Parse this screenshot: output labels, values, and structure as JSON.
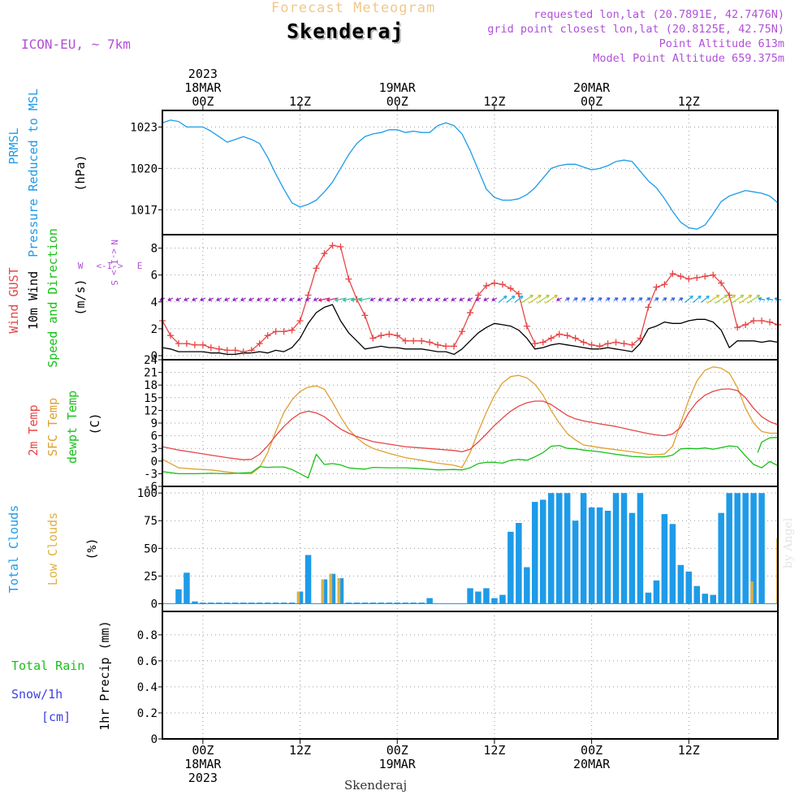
{
  "header": {
    "title": "Forecast Meteogram",
    "location": "Skenderaj",
    "model": "ICON-EU, ~ 7km",
    "requested": "requested lon,lat (20.7891E, 42.7476N)",
    "gridpoint": "grid point closest lon,lat (20.8125E, 42.75N)",
    "point_altitude": "Point Altitude 613m",
    "model_altitude": "Model Point Altitude 659.375m",
    "credit": "by Angel",
    "footer": "Skenderaj"
  },
  "colors": {
    "pressure": "#1e9be8",
    "gust": "#e84545",
    "wind": "#000000",
    "temp2m": "#e84545",
    "sfc": "#e0a030",
    "dewpt": "#18c018",
    "total_clouds": "#1e9be8",
    "low_clouds": "#e0b040",
    "rain": "#18c018",
    "snow": "#4040e0",
    "title": "#f0c88a",
    "meta": "#b050d8"
  },
  "time_axis": {
    "top_labels": [
      {
        "lines": [
          "2023",
          "18MAR",
          "00Z"
        ],
        "hour": 0
      },
      {
        "lines": [
          "12Z"
        ],
        "hour": 12
      },
      {
        "lines": [
          "19MAR",
          "00Z"
        ],
        "hour": 24
      },
      {
        "lines": [
          "12Z"
        ],
        "hour": 36
      },
      {
        "lines": [
          "20MAR",
          "00Z"
        ],
        "hour": 48
      },
      {
        "lines": [
          "12Z"
        ],
        "hour": 60
      }
    ],
    "bottom_labels": [
      {
        "lines": [
          "00Z",
          "18MAR",
          "2023"
        ],
        "hour": 0
      },
      {
        "lines": [
          "12Z"
        ],
        "hour": 12
      },
      {
        "lines": [
          "00Z",
          "19MAR"
        ],
        "hour": 24
      },
      {
        "lines": [
          "12Z"
        ],
        "hour": 36
      },
      {
        "lines": [
          "00Z",
          "20MAR"
        ],
        "hour": 48
      },
      {
        "lines": [
          "12Z"
        ],
        "hour": 60
      }
    ],
    "start_hour": -5,
    "end_hour": 71
  },
  "chart_data": [
    {
      "type": "line",
      "id": "pressure",
      "ylabel": [
        "PRMSL",
        "Pressure Reduced to MSL",
        "(hPa)"
      ],
      "yticks": [
        1017,
        1020,
        1023
      ],
      "ylim": [
        1015.2,
        1024.2
      ],
      "x": [
        -5,
        -4,
        -3,
        -2,
        -1,
        0,
        1,
        2,
        3,
        4,
        5,
        6,
        7,
        8,
        9,
        10,
        11,
        12,
        13,
        14,
        15,
        16,
        17,
        18,
        19,
        20,
        21,
        22,
        23,
        24,
        25,
        26,
        27,
        28,
        29,
        30,
        31,
        32,
        33,
        34,
        35,
        36,
        37,
        38,
        39,
        40,
        41,
        42,
        43,
        44,
        45,
        46,
        47,
        48,
        49,
        50,
        51,
        52,
        53,
        54,
        55,
        56,
        57,
        58,
        59,
        60,
        61,
        62,
        63,
        64,
        65,
        66,
        67,
        68,
        69,
        70,
        71
      ],
      "series": [
        {
          "name": "PRMSL",
          "values": [
            1023.3,
            1023.5,
            1023.4,
            1023.0,
            1023.0,
            1023.0,
            1022.7,
            1022.3,
            1021.9,
            1022.1,
            1022.3,
            1022.1,
            1021.8,
            1020.8,
            1019.6,
            1018.5,
            1017.5,
            1017.2,
            1017.4,
            1017.7,
            1018.3,
            1019.0,
            1020.0,
            1021.0,
            1021.8,
            1022.3,
            1022.5,
            1022.6,
            1022.8,
            1022.8,
            1022.6,
            1022.7,
            1022.6,
            1022.6,
            1023.1,
            1023.3,
            1023.1,
            1022.5,
            1021.3,
            1019.9,
            1018.5,
            1017.9,
            1017.7,
            1017.7,
            1017.8,
            1018.1,
            1018.6,
            1019.3,
            1020.0,
            1020.2,
            1020.3,
            1020.3,
            1020.1,
            1019.9,
            1020.0,
            1020.2,
            1020.5,
            1020.6,
            1020.5,
            1019.8,
            1019.1,
            1018.6,
            1017.8,
            1016.9,
            1016.1,
            1015.7,
            1015.6,
            1015.9,
            1016.7,
            1017.6,
            1018.0,
            1018.2,
            1018.4,
            1018.3,
            1018.2,
            1018.0,
            1017.5
          ]
        }
      ]
    },
    {
      "type": "line",
      "id": "wind",
      "ylabel": [
        "Wind GUST",
        "10m Wind",
        "Speed and Direction",
        "(m/s)"
      ],
      "compass": {
        "n": "N",
        "s": "S",
        "w": "W",
        "e": "E"
      },
      "yticks": [
        0,
        2,
        4,
        6,
        8
      ],
      "ylim": [
        -0.3,
        9.0
      ],
      "x": [
        -5,
        -4,
        -3,
        -2,
        -1,
        0,
        1,
        2,
        3,
        4,
        5,
        6,
        7,
        8,
        9,
        10,
        11,
        12,
        13,
        14,
        15,
        16,
        17,
        18,
        19,
        20,
        21,
        22,
        23,
        24,
        25,
        26,
        27,
        28,
        29,
        30,
        31,
        32,
        33,
        34,
        35,
        36,
        37,
        38,
        39,
        40,
        41,
        42,
        43,
        44,
        45,
        46,
        47,
        48,
        49,
        50,
        51,
        52,
        53,
        54,
        55,
        56,
        57,
        58,
        59,
        60,
        61,
        62,
        63,
        64,
        65,
        66,
        67,
        68,
        69,
        70,
        71
      ],
      "series": [
        {
          "name": "Wind GUST",
          "values": [
            2.6,
            1.5,
            0.9,
            0.9,
            0.8,
            0.8,
            0.6,
            0.5,
            0.4,
            0.4,
            0.3,
            0.4,
            0.9,
            1.5,
            1.8,
            1.8,
            1.9,
            2.6,
            4.5,
            6.5,
            7.6,
            8.2,
            8.1,
            5.7,
            4.2,
            3.0,
            1.3,
            1.5,
            1.6,
            1.5,
            1.1,
            1.1,
            1.1,
            1.0,
            0.8,
            0.7,
            0.7,
            1.8,
            3.2,
            4.5,
            5.2,
            5.4,
            5.3,
            5.0,
            4.6,
            2.2,
            0.9,
            1.0,
            1.3,
            1.6,
            1.5,
            1.3,
            1.0,
            0.8,
            0.7,
            0.9,
            1.0,
            0.9,
            0.8,
            1.3,
            3.6,
            5.1,
            5.3,
            6.1,
            5.9,
            5.7,
            5.8,
            5.9,
            6.0,
            5.4,
            4.5,
            2.1,
            2.3,
            2.6,
            2.6,
            2.5,
            2.3
          ]
        },
        {
          "name": "10m Wind",
          "values": [
            0.6,
            0.5,
            0.3,
            0.3,
            0.3,
            0.3,
            0.2,
            0.2,
            0.1,
            0.1,
            0.2,
            0.2,
            0.3,
            0.2,
            0.4,
            0.3,
            0.6,
            1.3,
            2.4,
            3.2,
            3.6,
            3.8,
            2.6,
            1.7,
            1.1,
            0.5,
            0.6,
            0.7,
            0.6,
            0.6,
            0.5,
            0.5,
            0.5,
            0.4,
            0.3,
            0.3,
            0.1,
            0.5,
            1.1,
            1.7,
            2.1,
            2.4,
            2.3,
            2.2,
            1.9,
            1.3,
            0.5,
            0.6,
            0.8,
            0.9,
            0.8,
            0.7,
            0.6,
            0.5,
            0.5,
            0.6,
            0.5,
            0.4,
            0.3,
            0.9,
            2.0,
            2.2,
            2.5,
            2.4,
            2.4,
            2.6,
            2.7,
            2.7,
            2.5,
            1.9,
            0.6,
            1.1,
            1.1,
            1.1,
            1.0,
            1.1,
            1.0
          ]
        }
      ]
    },
    {
      "type": "line",
      "id": "temperature",
      "ylabel": [
        "2m Temp",
        "SFC Temp",
        "dewpt Temp",
        "(C)"
      ],
      "yticks": [
        -6,
        -3,
        0,
        3,
        6,
        9,
        12,
        15,
        18,
        21,
        24
      ],
      "ylim": [
        -6,
        24
      ],
      "x": [
        -5,
        -3,
        -1,
        1,
        3,
        5,
        6,
        7,
        8,
        9,
        10,
        11,
        12,
        13,
        14,
        15,
        16,
        17,
        18,
        19,
        20,
        21,
        23,
        25,
        27,
        29,
        31,
        32,
        33,
        34,
        35,
        36,
        37,
        38,
        39,
        40,
        41,
        42,
        43,
        44,
        45,
        46,
        47,
        49,
        51,
        53,
        55,
        56,
        57,
        58,
        59,
        60,
        61,
        62,
        63,
        64,
        65,
        66,
        67,
        68,
        69,
        70,
        71
      ],
      "series": [
        {
          "name": "2m Temp",
          "values": [
            3.4,
            2.6,
            2.0,
            1.4,
            0.8,
            0.3,
            0.4,
            1.6,
            3.6,
            6.0,
            8.2,
            10.0,
            11.3,
            11.8,
            11.4,
            10.5,
            9.0,
            7.6,
            6.6,
            5.8,
            5.2,
            4.6,
            4.0,
            3.4,
            3.1,
            2.8,
            2.5,
            2.2,
            2.8,
            4.5,
            6.4,
            8.4,
            10.2,
            11.8,
            13.0,
            13.8,
            14.2,
            14.2,
            13.4,
            12.1,
            10.8,
            10.0,
            9.5,
            8.8,
            8.2,
            7.3,
            6.5,
            6.2,
            6.0,
            6.4,
            8.0,
            11.5,
            14.0,
            15.6,
            16.5,
            17.0,
            17.1,
            16.7,
            15.0,
            12.5,
            10.5,
            9.3,
            8.6
          ]
        },
        {
          "name": "SFC Temp",
          "values": [
            0.4,
            -1.6,
            -1.9,
            -2.1,
            -2.6,
            -3.0,
            -3.0,
            -1.5,
            2.0,
            7.0,
            11.5,
            14.5,
            16.5,
            17.5,
            17.8,
            17.0,
            14.0,
            10.5,
            7.5,
            5.5,
            4.0,
            3.0,
            1.8,
            0.8,
            0.2,
            -0.5,
            -1.0,
            -1.5,
            2.0,
            7.0,
            11.5,
            15.5,
            18.5,
            20.0,
            20.3,
            19.7,
            18.2,
            15.6,
            12.0,
            9.0,
            6.5,
            5.0,
            3.8,
            3.2,
            2.7,
            2.2,
            1.6,
            1.5,
            1.7,
            3.5,
            9.0,
            14.5,
            19.0,
            21.5,
            22.3,
            22.0,
            20.8,
            17.5,
            12.5,
            9.0,
            7.0,
            6.6,
            6.6
          ]
        },
        {
          "name": "dewpt Temp",
          "values": [
            -2.5,
            -3.0,
            -3.0,
            -2.9,
            -3.0,
            -2.8,
            -2.7,
            -1.3,
            -1.5,
            -1.4,
            -1.4,
            -2.0,
            -3.0,
            -4.0,
            1.6,
            -0.8,
            -0.6,
            -0.9,
            -1.6,
            -1.8,
            -1.9,
            -1.5,
            -1.6,
            -1.6,
            -1.8,
            -2.1,
            -2.0,
            -2.1,
            -1.6,
            -0.6,
            -0.3,
            -0.3,
            -0.5,
            0.2,
            0.4,
            0.2,
            1.0,
            2.0,
            3.5,
            3.7,
            3.0,
            2.9,
            2.6,
            2.2,
            1.6,
            1.1,
            0.9,
            1.0,
            1.0,
            1.4,
            2.9,
            3.0,
            2.9,
            3.1,
            2.8,
            3.2,
            3.6,
            3.4,
            1.2,
            -0.8,
            -1.6,
            -0.1,
            -1.1
          ]
        }
      ],
      "extra_series": {
        "name": "dewpt Temp tail",
        "x": [
          68.5,
          69,
          70,
          71
        ],
        "values": [
          2.0,
          4.5,
          5.5,
          5.6
        ]
      }
    },
    {
      "type": "bar",
      "id": "clouds",
      "ylabel": [
        "Total Clouds",
        "Low Clouds",
        "(%)"
      ],
      "yticks": [
        0,
        25,
        50,
        75,
        100
      ],
      "ylim": [
        -7,
        106
      ],
      "x": [
        -5,
        -4,
        -3,
        -2,
        -1,
        0,
        1,
        2,
        3,
        4,
        5,
        6,
        7,
        8,
        9,
        10,
        11,
        12,
        13,
        14,
        15,
        16,
        17,
        18,
        19,
        20,
        21,
        22,
        23,
        24,
        25,
        26,
        27,
        28,
        29,
        30,
        31,
        32,
        33,
        34,
        35,
        36,
        37,
        38,
        39,
        40,
        41,
        42,
        43,
        44,
        45,
        46,
        47,
        48,
        49,
        50,
        51,
        52,
        53,
        54,
        55,
        56,
        57,
        58,
        59,
        60,
        61,
        62,
        63,
        64,
        65,
        66,
        67,
        68,
        69,
        70,
        71
      ],
      "series": [
        {
          "name": "Total Clouds",
          "values": [
            0,
            0,
            13,
            28,
            2,
            1,
            1,
            1,
            1,
            1,
            1,
            1,
            1,
            1,
            1,
            1,
            1,
            11,
            44,
            0,
            22,
            27,
            23,
            1,
            1,
            1,
            1,
            1,
            1,
            1,
            1,
            1,
            1,
            5,
            0,
            0,
            0,
            0,
            14,
            11,
            14,
            5,
            8,
            65,
            73,
            33,
            92,
            94,
            100,
            100,
            100,
            75,
            100,
            87,
            87,
            84,
            100,
            100,
            82,
            100,
            10,
            21,
            81,
            72,
            35,
            29,
            16,
            9,
            8,
            82,
            100,
            100,
            100,
            100,
            100,
            0,
            0
          ]
        },
        {
          "name": "Low Clouds",
          "values": [
            0,
            0,
            0,
            0,
            0,
            0,
            0,
            0,
            0,
            0,
            0,
            0,
            0,
            0,
            0,
            0,
            0,
            11,
            0,
            0,
            22,
            27,
            23,
            0,
            0,
            0,
            0,
            0,
            0,
            0,
            0,
            0,
            0,
            0,
            0,
            0,
            0,
            0,
            0,
            0,
            0,
            0,
            0,
            0,
            0,
            0,
            0,
            0,
            0,
            0,
            0,
            0,
            0,
            0,
            0,
            0,
            0,
            0,
            0,
            0,
            0,
            0,
            0,
            0,
            0,
            0,
            0,
            0,
            0,
            0,
            0,
            0,
            0,
            20,
            0,
            0,
            0
          ]
        }
      ]
    },
    {
      "type": "bar",
      "id": "precip",
      "ylabel": [
        "1hr Precip (mm)"
      ],
      "legend": {
        "rain": "Total  Rain",
        "snow": "Snow/1h",
        "snow_unit": "[cm]"
      },
      "yticks": [
        0,
        0.2,
        0.4,
        0.6,
        0.8
      ],
      "ytick_labels": [
        "0",
        "0.2",
        "0.4",
        "0.6",
        "0.8"
      ],
      "ylim": [
        0,
        0.98
      ],
      "series": [
        {
          "name": "Total Rain",
          "values": []
        },
        {
          "name": "Snow/1h",
          "values": []
        }
      ]
    }
  ]
}
